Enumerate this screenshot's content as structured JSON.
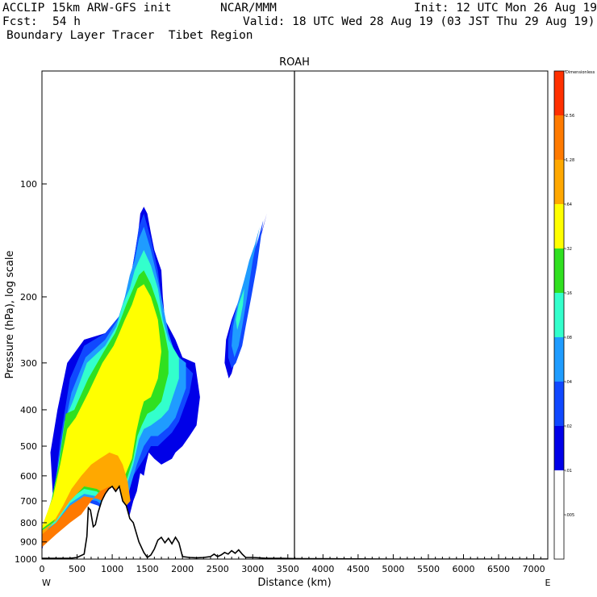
{
  "header": {
    "model": "ACCLIP 15km ARW-GFS init",
    "institution": "NCAR/MMM",
    "init": "Init: 12 UTC Mon 26 Aug 19",
    "fcst_label": "Fcst:",
    "fcst_value": "54 h",
    "valid": "Valid: 18 UTC Wed 28 Aug 19 (03 JST Thu 29 Aug 19)",
    "field": "Boundary Layer Tracer  Tibet Region"
  },
  "chart_data": {
    "type": "heatmap",
    "title": "ROAH",
    "xlabel": "Distance (km)",
    "ylabel": "Pressure (hPa), log scale",
    "y_scale": "log",
    "xlim": [
      0,
      7200
    ],
    "ylim": [
      1000,
      50
    ],
    "x_ticks": [
      "0",
      "500",
      "1000",
      "1500",
      "2000",
      "2500",
      "3000",
      "3500",
      "4000",
      "4500",
      "5000",
      "5500",
      "6000",
      "6500",
      "7000"
    ],
    "y_ticks": [
      "100",
      "200",
      "300",
      "400",
      "500",
      "600",
      "700",
      "800",
      "900",
      "1000"
    ],
    "y_tick_values": [
      100,
      200,
      300,
      400,
      500,
      600,
      700,
      800,
      900,
      1000
    ],
    "x_end_labels": {
      "left": "W",
      "right": "E"
    },
    "marker_x_km": 3600,
    "colorbar": {
      "labels": [
        "Dimensionless",
        "2.56",
        "1.28",
        ".64",
        ".32",
        ".16",
        ".08",
        ".04",
        ".02",
        ".01",
        ".005"
      ],
      "colors": [
        "#ff3000",
        "#ff7a00",
        "#ffa800",
        "#ffff00",
        "#30e020",
        "#33ffcc",
        "#1f9cff",
        "#1048ff",
        "#0000e8",
        "#ffffff",
        "#ffffff"
      ]
    },
    "contour_levels": [
      0.01,
      0.02,
      0.04,
      0.08,
      0.16,
      0.32,
      0.64,
      1.28
    ],
    "level_colors": {
      "0.01": "#0000e8",
      "0.02": "#1048ff",
      "0.04": "#1f9cff",
      "0.08": "#33ffcc",
      "0.16": "#30e020",
      "0.32": "#ffff00",
      "0.64": "#ffa800",
      "1.28": "#ff7a00"
    },
    "terrain": {
      "x": [
        0,
        400,
        500,
        600,
        640,
        660,
        690,
        730,
        760,
        800,
        850,
        900,
        950,
        1000,
        1050,
        1100,
        1150,
        1200,
        1250,
        1300,
        1380,
        1450,
        1500,
        1550,
        1600,
        1650,
        1700,
        1750,
        1800,
        1850,
        1900,
        1950,
        2000,
        2100,
        2200,
        2300,
        2400,
        2450,
        2500,
        2550,
        2600,
        2650,
        2700,
        2750,
        2800,
        2850,
        2900,
        3000,
        3200,
        3400,
        3600,
        4000,
        5000,
        6000,
        7200
      ],
      "p": [
        995,
        995,
        990,
        970,
        870,
        730,
        740,
        820,
        810,
        750,
        700,
        670,
        650,
        640,
        660,
        640,
        700,
        720,
        780,
        800,
        900,
        960,
        990,
        975,
        940,
        890,
        875,
        905,
        880,
        910,
        875,
        905,
        985,
        990,
        992,
        990,
        985,
        970,
        985,
        975,
        960,
        970,
        950,
        965,
        945,
        970,
        990,
        990,
        995,
        995,
        997,
        998,
        1000,
        1000,
        1000
      ]
    },
    "plumes": [
      {
        "name": "main",
        "levels": [
          {
            "v": 0.01,
            "x": [
              0,
              60,
              160,
              120,
              220,
              360,
              600,
              900,
              1100,
              1200,
              1250,
              1280,
              1330,
              1370,
              1400,
              1450,
              1500,
              1550,
              1600,
              1700,
              1720,
              1750,
              1900,
              2000,
              2180,
              2250,
              2200,
              2100,
              2000,
              1900,
              1850,
              1700,
              1600,
              1520,
              1480,
              1450,
              1400,
              1350,
              1300,
              1250,
              1200,
              1100,
              1000,
              900,
              800,
              650,
              500,
              300,
              100,
              0
            ],
            "p": [
              950,
              850,
              700,
              520,
              400,
              300,
              260,
              250,
              230,
              210,
              190,
              170,
              150,
              135,
              120,
              115,
              120,
              135,
              150,
              170,
              200,
              230,
              260,
              290,
              300,
              370,
              440,
              470,
              500,
              520,
              540,
              560,
              540,
              520,
              560,
              600,
              590,
              660,
              700,
              760,
              820,
              840,
              780,
              730,
              700,
              680,
              720,
              800,
              860,
              900
            ]
          },
          {
            "v": 0.02,
            "x": [
              0,
              80,
              180,
              260,
              400,
              600,
              900,
              1100,
              1220,
              1280,
              1330,
              1380,
              1450,
              1550,
              1650,
              1700,
              1750,
              1850,
              2000,
              2150,
              2100,
              1950,
              1850,
              1650,
              1550,
              1480,
              1400,
              1300,
              1250,
              1200,
              1100,
              950,
              800,
              600,
              400,
              200,
              0
            ],
            "p": [
              930,
              830,
              660,
              480,
              330,
              270,
              250,
              225,
              195,
              170,
              150,
              130,
              120,
              140,
              170,
              200,
              240,
              280,
              300,
              320,
              360,
              430,
              460,
              500,
              500,
              530,
              560,
              600,
              650,
              740,
              800,
              770,
              720,
              700,
              740,
              820,
              880
            ]
          },
          {
            "v": 0.04,
            "x": [
              0,
              100,
              200,
              300,
              420,
              620,
              900,
              1080,
              1180,
              1250,
              1320,
              1380,
              1450,
              1550,
              1650,
              1720,
              1800,
              1900,
              2050,
              2050,
              1900,
              1800,
              1650,
              1550,
              1450,
              1350,
              1280,
              1200,
              1100,
              950,
              780,
              600,
              400,
              200,
              0
            ],
            "p": [
              880,
              760,
              620,
              460,
              360,
              290,
              260,
              230,
              200,
              175,
              160,
              140,
              130,
              150,
              180,
              210,
              250,
              285,
              300,
              350,
              420,
              445,
              470,
              470,
              500,
              560,
              620,
              700,
              770,
              740,
              700,
              690,
              730,
              810,
              860
            ]
          },
          {
            "v": 0.08,
            "x": [
              0,
              120,
              220,
              320,
              440,
              640,
              900,
              1060,
              1150,
              1250,
              1320,
              1380,
              1450,
              1550,
              1650,
              1720,
              1800,
              1950,
              1950,
              1800,
              1700,
              1550,
              1450,
              1380,
              1300,
              1200,
              1100,
              950,
              780,
              600,
              400,
              200,
              0
            ],
            "p": [
              860,
              720,
              580,
              430,
              380,
              300,
              270,
              240,
              210,
              190,
              170,
              160,
              150,
              165,
              190,
              230,
              260,
              290,
              330,
              400,
              420,
              440,
              450,
              480,
              560,
              640,
              730,
              720,
              680,
              670,
              710,
              800,
              850
            ]
          },
          {
            "v": 0.16,
            "x": [
              0,
              140,
              240,
              340,
              460,
              660,
              880,
              1040,
              1120,
              1200,
              1300,
              1380,
              1450,
              1550,
              1650,
              1750,
              1800,
              1800,
              1700,
              1600,
              1500,
              1420,
              1360,
              1300,
              1200,
              1100,
              950,
              780,
              600,
              400,
              200,
              0
            ],
            "p": [
              840,
              690,
              560,
              410,
              400,
              330,
              280,
              250,
              230,
              210,
              190,
              175,
              170,
              185,
              210,
              250,
              280,
              320,
              380,
              400,
              410,
              440,
              470,
              540,
              620,
              700,
              700,
              660,
              650,
              690,
              790,
              840
            ]
          },
          {
            "v": 0.32,
            "x": [
              0,
              160,
              260,
              360,
              480,
              660,
              860,
              1020,
              1100,
              1180,
              1280,
              1360,
              1450,
              1550,
              1650,
              1700,
              1650,
              1550,
              1450,
              1400,
              1340,
              1280,
              1180,
              1100,
              950,
              780,
              600,
              400,
              200,
              0
            ],
            "p": [
              820,
              680,
              560,
              450,
              420,
              360,
              300,
              270,
              250,
              230,
              210,
              190,
              185,
              200,
              230,
              280,
              330,
              370,
              380,
              410,
              460,
              540,
              600,
              670,
              680,
              640,
              630,
              680,
              780,
              830
            ]
          },
          {
            "v": 0.64,
            "x": [
              0,
              160,
              300,
              420,
              560,
              700,
              820,
              960,
              1080,
              1150,
              1220,
              1260,
              1200,
              1100,
              950,
              780,
              600,
              400,
              200,
              0
            ],
            "p": [
              870,
              800,
              720,
              650,
              600,
              560,
              540,
              520,
              530,
              560,
              620,
              700,
              720,
              720,
              680,
              650,
              640,
              700,
              790,
              840
            ]
          },
          {
            "v": 1.28,
            "x": [
              0,
              200,
              400,
              560,
              700,
              820,
              960,
              1080,
              1160,
              1100,
              950,
              780,
              600,
              400,
              200,
              0
            ],
            "p": [
              930,
              860,
              800,
              760,
              700,
              660,
              640,
              650,
              690,
              730,
              710,
              690,
              680,
              720,
              800,
              860
            ]
          }
        ]
      },
      {
        "name": "east",
        "levels": [
          {
            "v": 0.01,
            "x": [
              3200,
              3130,
              3050,
              2950,
              2820,
              2700,
              2620,
              2600,
              2660,
              2700,
              2780,
              2880,
              2920,
              3000,
              3100,
              3200
            ],
            "p": [
              120,
              135,
              150,
              170,
              200,
              230,
              260,
              300,
              330,
              320,
              280,
              240,
              200,
              170,
              140,
              120
            ]
          },
          {
            "v": 0.02,
            "x": [
              3150,
              3080,
              3000,
              2900,
              2800,
              2700,
              2650,
              2650,
              2700,
              2760,
              2850,
              2900,
              2980,
              3060,
              3150
            ],
            "p": [
              125,
              140,
              155,
              175,
              205,
              235,
              260,
              290,
              310,
              300,
              270,
              240,
              200,
              165,
              125
            ]
          },
          {
            "v": 0.04,
            "x": [
              3100,
              3030,
              2950,
              2880,
              2780,
              2720,
              2700,
              2740,
              2800,
              2850,
              2920,
              3000,
              3100
            ],
            "p": [
              130,
              145,
              160,
              180,
              210,
              240,
              270,
              290,
              270,
              240,
              200,
              160,
              130
            ]
          },
          {
            "v": 0.08,
            "x": [
              2880,
              2800,
              2760,
              2780,
              2820,
              2860,
              2880
            ],
            "p": [
              190,
              210,
              230,
              245,
              230,
              210,
              190
            ]
          }
        ]
      }
    ]
  }
}
